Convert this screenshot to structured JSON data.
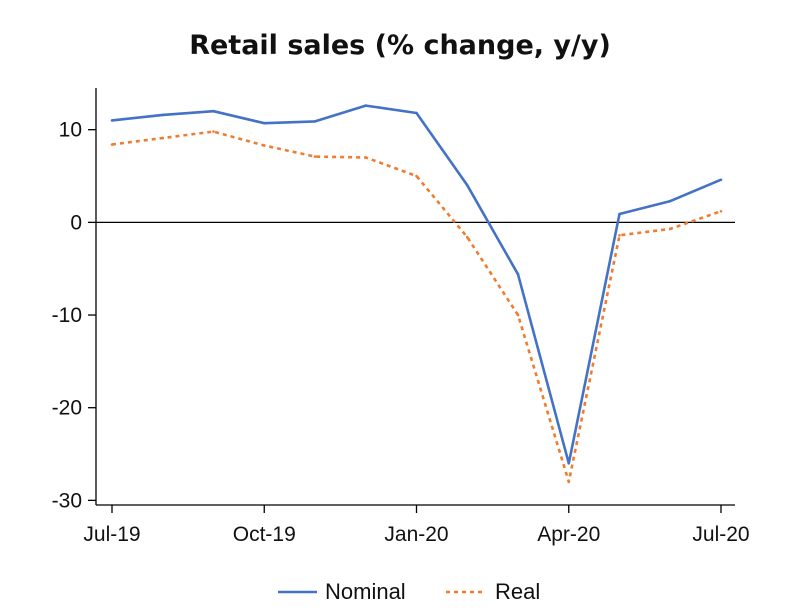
{
  "chart_data": {
    "type": "line",
    "title": "Retail sales (% change, y/y)",
    "xlabel": "",
    "ylabel": "",
    "x": [
      "Jul-19",
      "Aug-19",
      "Sep-19",
      "Oct-19",
      "Nov-19",
      "Dec-19",
      "Jan-20",
      "Feb-20",
      "Mar-20",
      "Apr-20",
      "May-20",
      "Jun-20",
      "Jul-20"
    ],
    "x_tick_labels": [
      "Jul-19",
      "Oct-19",
      "Jan-20",
      "Apr-20",
      "Jul-20"
    ],
    "x_tick_indices": [
      0,
      3,
      6,
      9,
      12
    ],
    "y_ticks": [
      10,
      0,
      -10,
      -20,
      -30
    ],
    "ylim": [
      -30.5,
      14.5
    ],
    "zero_line": true,
    "grid": false,
    "legend_position": "bottom-center",
    "series": [
      {
        "name": "Nominal",
        "color": "#4472c4",
        "style": "solid",
        "values": [
          11.0,
          11.6,
          12.0,
          10.7,
          10.9,
          12.6,
          11.8,
          4.0,
          -5.6,
          -26.0,
          0.9,
          2.3,
          4.6
        ]
      },
      {
        "name": "Real",
        "color": "#ed7d31",
        "style": "dotted",
        "values": [
          8.4,
          9.1,
          9.8,
          8.3,
          7.1,
          7.0,
          5.0,
          -1.6,
          -10.0,
          -28.0,
          -1.4,
          -0.7,
          1.2
        ]
      }
    ]
  }
}
